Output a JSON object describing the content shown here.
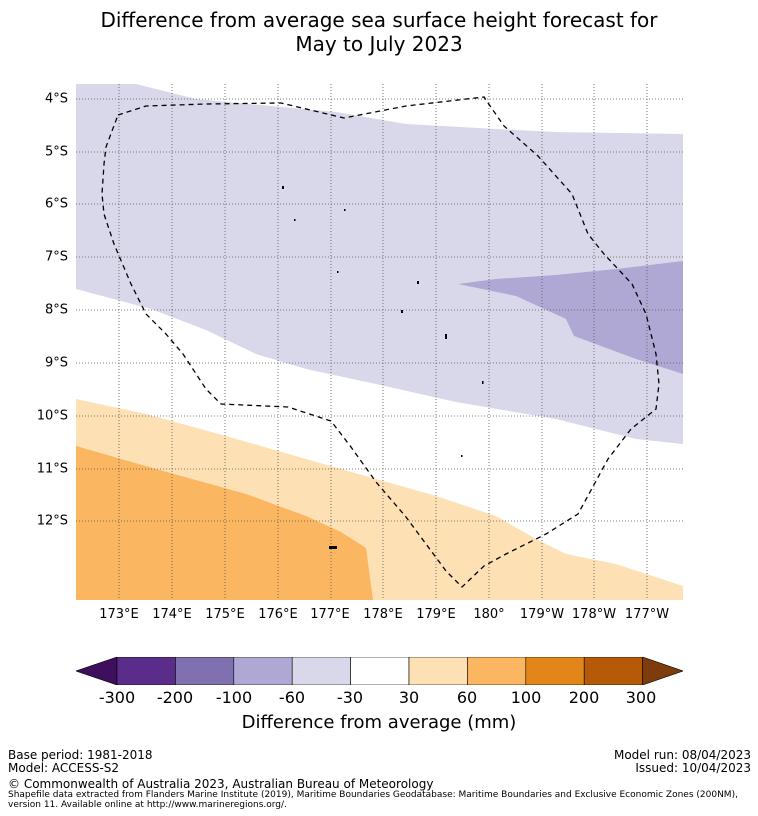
{
  "title": {
    "line1": "Difference from average sea surface height forecast for",
    "line2": "May to July 2023"
  },
  "map": {
    "lat_labels": [
      "4°S",
      "5°S",
      "6°S",
      "7°S",
      "8°S",
      "9°S",
      "10°S",
      "11°S",
      "12°S"
    ],
    "lon_labels": [
      "173°E",
      "174°E",
      "175°E",
      "176°E",
      "177°E",
      "178°E",
      "179°E",
      "180°",
      "179°W",
      "178°W",
      "177°W"
    ],
    "boundary": "Maritime boundary (EEZ)"
  },
  "colorbar": {
    "tick_labels": [
      "-300",
      "-200",
      "-100",
      "-60",
      "-30",
      "30",
      "60",
      "100",
      "200",
      "300"
    ],
    "colors": [
      "#3d0f5c",
      "#5a2d8a",
      "#8070b0",
      "#b0a8d4",
      "#d8d8ea",
      "#ffffff",
      "#fde0b4",
      "#fbb661",
      "#e2861a",
      "#b65a0a",
      "#7e3c0c"
    ],
    "label": "Difference from average (mm)"
  },
  "footer": {
    "base_period": "Base period: 1981-2018",
    "model": "Model: ACCESS-S2",
    "model_run": "Model run: 08/04/2023",
    "issued": "Issued: 10/04/2023",
    "copyright": "© Commonwealth of Australia 2023, Australian Bureau of Meteorology",
    "shapefile": "Shapefile data extracted from Flanders Marine Institute (2019), Maritime Boundaries Geodatabase: Maritime Boundaries and Exclusive Economic Zones (200NM), version 11. Available online at http://www.marineregions.org/."
  }
}
